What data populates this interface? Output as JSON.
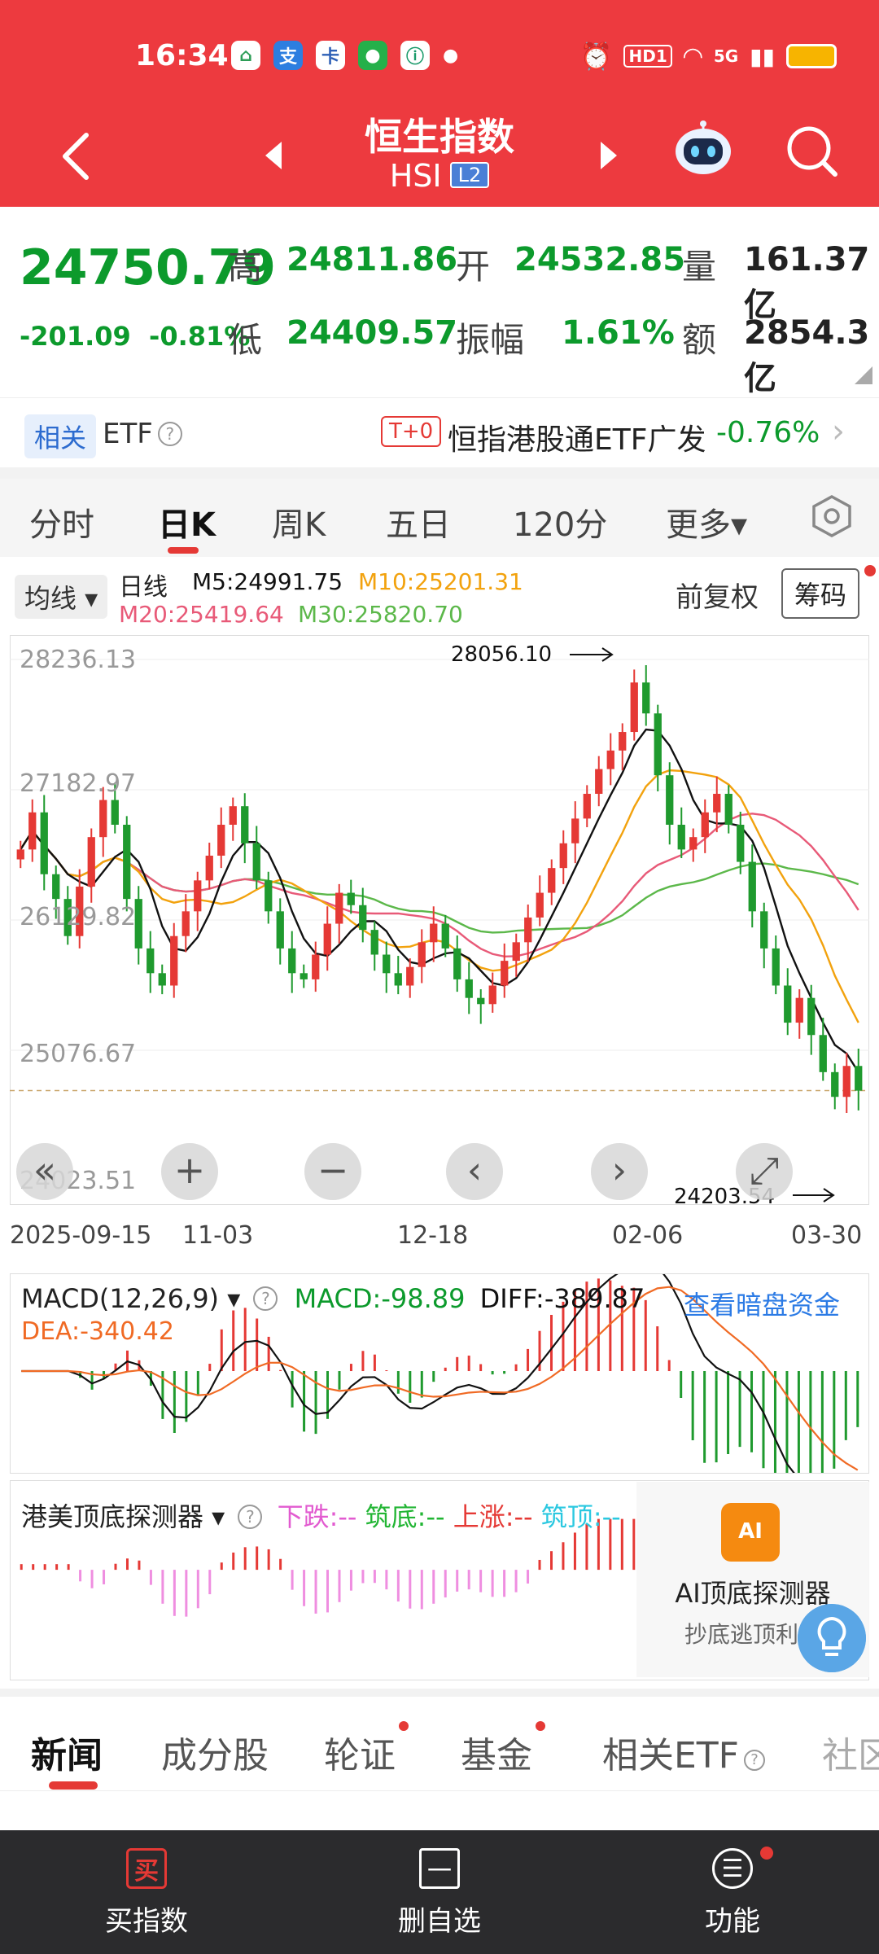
{
  "status": {
    "time": "16:34",
    "hd": "HD1",
    "net": "5G"
  },
  "header": {
    "title": "恒生指数",
    "code": "HSI",
    "badge": "L2"
  },
  "quote": {
    "price": "24750.79",
    "change": "-201.09",
    "change_pct": "-0.81%",
    "high_label": "高",
    "high": "24811.86",
    "open_label": "开",
    "open": "24532.85",
    "vol_label": "量",
    "vol": "161.37亿",
    "low_label": "低",
    "low": "24409.57",
    "amp_label": "振幅",
    "amp": "1.61%",
    "amt_label": "额",
    "amt": "2854.3亿"
  },
  "etf": {
    "tag": "相关",
    "label": "ETF",
    "help": "?",
    "t0": "T+0",
    "name": "恒指港股通ETF广发",
    "pct": "-0.76%"
  },
  "periods": [
    "分时",
    "日K",
    "周K",
    "五日",
    "120分",
    "更多▾"
  ],
  "indicators": {
    "ma_select": "均线 ▾",
    "line_type": "日线",
    "m5": "M5:24991.75",
    "m10": "M10:25201.31",
    "m20": "M20:25419.64",
    "m30": "M30:25820.70",
    "adjust": "前复权",
    "chips": "筹码"
  },
  "chart_data": {
    "type": "candlestick",
    "y_ticks": [
      "28236.13",
      "27182.97",
      "26129.82",
      "25076.67",
      "24023.51"
    ],
    "ylim": [
      24023.51,
      28236.13
    ],
    "x_labels": [
      "2025-09-15",
      "11-03",
      "12-18",
      "02-06",
      "03-30"
    ],
    "max_label": "28056.10",
    "min_label": "24203.54",
    "last_close": 24750.79,
    "ma_colors": {
      "m5": "#111111",
      "m10": "#f2a20e",
      "m20": "#e85a78",
      "m30": "#5cb84a"
    },
    "candles_close": [
      26700,
      27000,
      26500,
      26300,
      26000,
      26400,
      26800,
      27100,
      26900,
      26300,
      25900,
      25700,
      25600,
      26000,
      26200,
      26450,
      26650,
      26900,
      27050,
      26750,
      26450,
      26200,
      25900,
      25700,
      25650,
      25850,
      26100,
      26350,
      26250,
      26050,
      25850,
      25700,
      25600,
      25750,
      25950,
      26100,
      25900,
      25650,
      25500,
      25450,
      25600,
      25800,
      25950,
      26150,
      26350,
      26550,
      26750,
      26950,
      27150,
      27350,
      27500,
      27650,
      28050,
      27800,
      27300,
      26900,
      26700,
      26800,
      27000,
      27150,
      26900,
      26600,
      26200,
      25900,
      25600,
      25300,
      25500,
      25200,
      24900,
      24700,
      24950,
      24750
    ]
  },
  "macd": {
    "label": "MACD(12,26,9) ▾",
    "help": "?",
    "macd": "MACD:-98.89",
    "diff": "DIFF:-389.87",
    "dea": "DEA:-340.42",
    "link": "查看暗盘资金"
  },
  "detector": {
    "label": "港美顶底探测器 ▾",
    "help": "?",
    "down": "下跌:--",
    "bottom": "筑底:--",
    "up": "上涨:--",
    "top": "筑顶:--",
    "ai_logo": "AI",
    "ai_title": "AI顶底探测器",
    "ai_sub": "抄底逃顶利器"
  },
  "news_tabs": [
    "新闻",
    "成分股",
    "轮证",
    "基金",
    "相关ETF",
    "社区"
  ],
  "bottom_nav": [
    {
      "icon": "买",
      "label": "买指数"
    },
    {
      "icon": "一",
      "label": "删自选"
    },
    {
      "icon": "☰",
      "label": "功能"
    }
  ]
}
